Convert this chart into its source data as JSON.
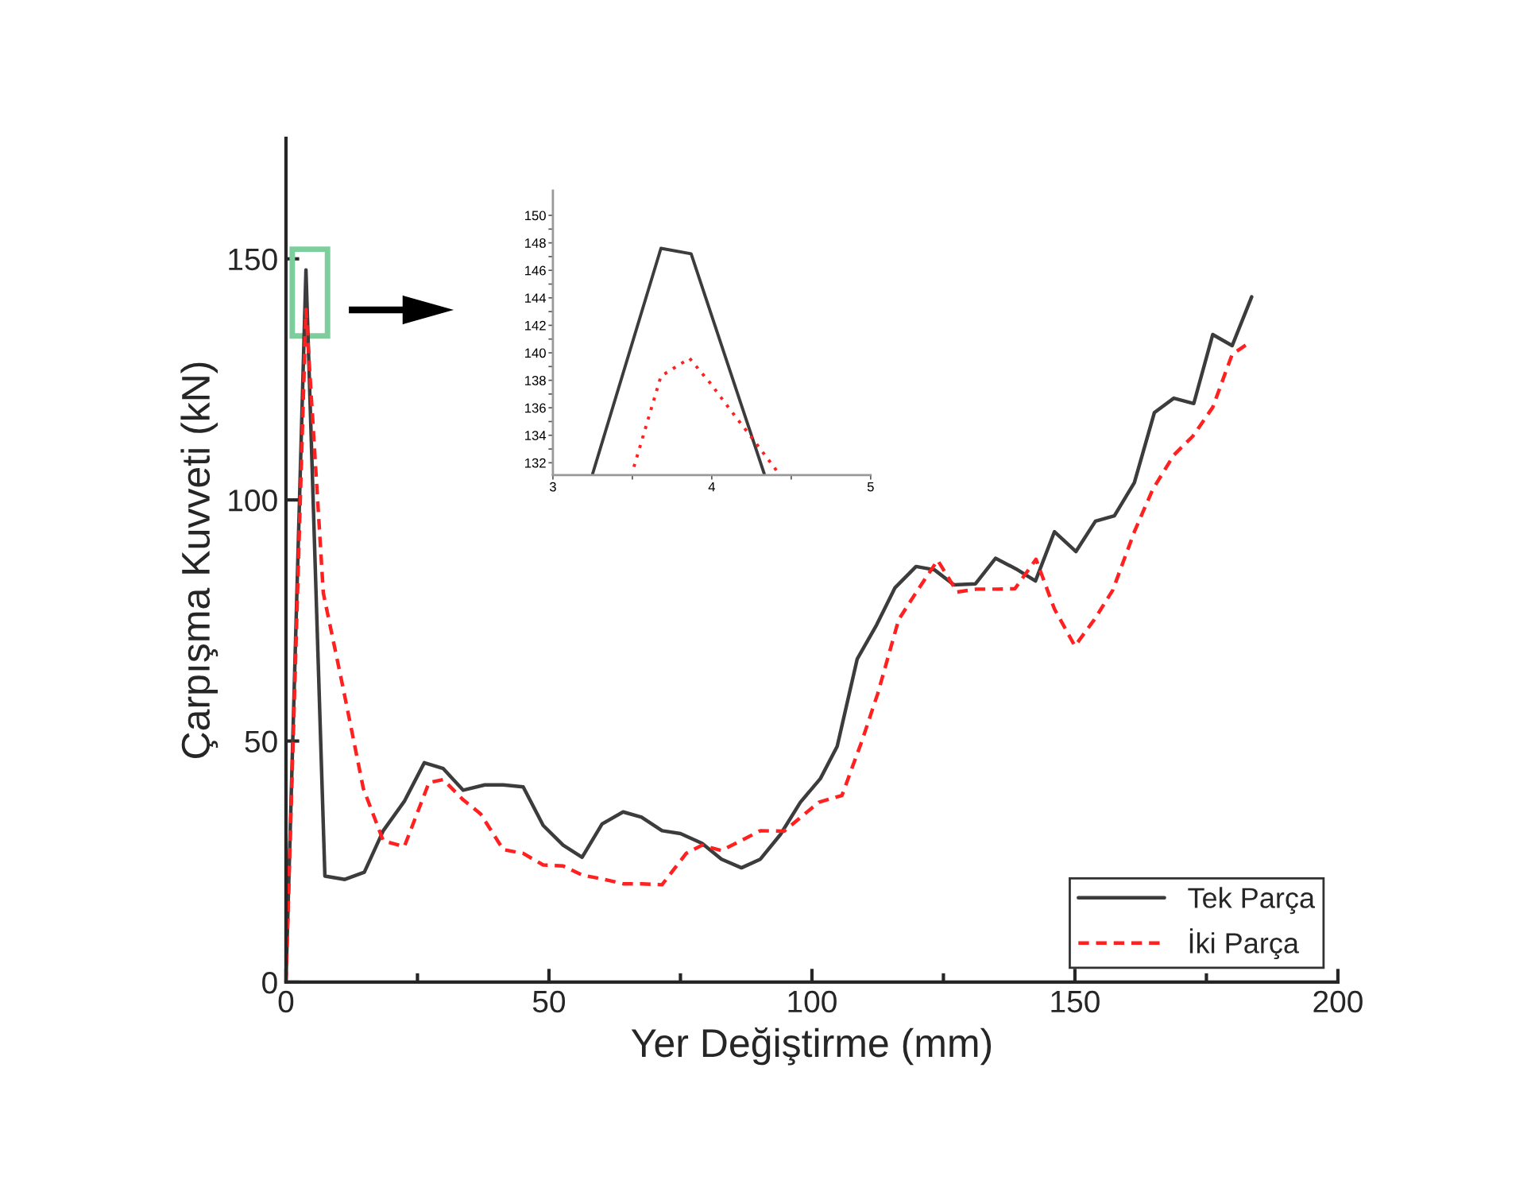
{
  "chart_data": [
    {
      "type": "line",
      "xlabel": "Yer Değiştirme (mm)",
      "ylabel": "Çarpışma Kuvveti (kN)",
      "xlim": [
        0,
        200
      ],
      "xticks": [
        0,
        50,
        100,
        150,
        200
      ],
      "ylim": [
        0,
        175
      ],
      "yticks": [
        0,
        50,
        100,
        150
      ],
      "grid": false,
      "legend": "bottom right",
      "series": [
        {
          "name": "Tek Parça",
          "color": "#3c3c3c",
          "line_style": "solid",
          "x": [
            0,
            3.8,
            7.4,
            11.2,
            14.9,
            18.5,
            22.5,
            26.3,
            29.9,
            33.7,
            37.8,
            41.3,
            45.1,
            48.9,
            52.7,
            56.3,
            60.1,
            64.1,
            67.6,
            71.5,
            75,
            79.1,
            82.8,
            86.6,
            90.2,
            94,
            97.8,
            101.6,
            104.8,
            108.6,
            112.3,
            115.8,
            119.8,
            123.3,
            127,
            131.1,
            134.9,
            138.8,
            142.5,
            146.1,
            150.2,
            153.9,
            157.5,
            161.3,
            165.1,
            168.8,
            172.6,
            176.2,
            179.9,
            183.6
          ],
          "values": [
            0,
            147.7,
            22,
            21.3,
            22.8,
            31.4,
            37.5,
            45.5,
            44.3,
            39.8,
            40.9,
            40.9,
            40.5,
            32.5,
            28.4,
            25.9,
            32.8,
            35.3,
            34.2,
            31.4,
            30.8,
            28.8,
            25.5,
            23.7,
            25.5,
            30.6,
            37.3,
            42.2,
            48.9,
            67,
            74.1,
            81.8,
            86.2,
            85.5,
            82.4,
            82.6,
            87.9,
            85.7,
            83.2,
            93.4,
            89.3,
            95.6,
            96.7,
            103.6,
            118.1,
            121.1,
            120,
            134.3,
            132,
            142.1
          ]
        },
        {
          "name": "İki Parça",
          "color": "#ff2020",
          "line_style": "dashed",
          "x": [
            0,
            3.8,
            7.1,
            10.9,
            14.7,
            18.5,
            22.5,
            27.2,
            29.9,
            33.7,
            37,
            41.3,
            45.1,
            48.9,
            52.7,
            56.3,
            60.1,
            64.1,
            67.6,
            71.5,
            76.1,
            79.1,
            82.8,
            86.6,
            90.2,
            94.7,
            101.3,
            105.7,
            109.5,
            112.5,
            116.5,
            120.1,
            123.9,
            127.6,
            131.3,
            135.1,
            138.6,
            142.6,
            146.1,
            150,
            153.7,
            157.2,
            161.3,
            164.8,
            168.8,
            172.4,
            176.2,
            179.9,
            182.9
          ],
          "values": [
            0,
            139.5,
            80.7,
            60.8,
            40.2,
            29.3,
            28.1,
            41.4,
            42,
            37.8,
            34.9,
            27.5,
            26.7,
            24.3,
            24.1,
            22.2,
            21.4,
            20.4,
            20.4,
            20.2,
            26.7,
            28.4,
            27.3,
            29.4,
            31.4,
            31.3,
            37.3,
            38.7,
            50,
            59.8,
            75.2,
            81.3,
            87.5,
            80.9,
            81.5,
            81.5,
            81.6,
            87.7,
            77.4,
            69.7,
            75.2,
            81.3,
            93.4,
            102.2,
            109.3,
            113.2,
            119.2,
            130.2,
            132.4
          ]
        }
      ]
    },
    {
      "type": "line",
      "xlim": [
        3,
        5
      ],
      "xticks": [
        3,
        4,
        5
      ],
      "ylim": [
        131.1,
        151.8
      ],
      "yticks": [
        132,
        134,
        136,
        138,
        140,
        142,
        144,
        146,
        148,
        150
      ],
      "grid": false,
      "series": [
        {
          "color": "#3c3c3c",
          "line_style": "solid",
          "x": [
            3.25,
            3.68,
            3.87,
            4.33
          ],
          "values": [
            131.2,
            147.6,
            147.2,
            131.2
          ]
        },
        {
          "color": "#ff2020",
          "line_style": "dotted",
          "x": [
            3.51,
            3.68,
            3.86,
            3.99,
            4.12,
            4.26,
            4.41
          ],
          "values": [
            131.7,
            138.3,
            139.6,
            137.8,
            135.8,
            133.7,
            131.4
          ]
        }
      ]
    }
  ]
}
